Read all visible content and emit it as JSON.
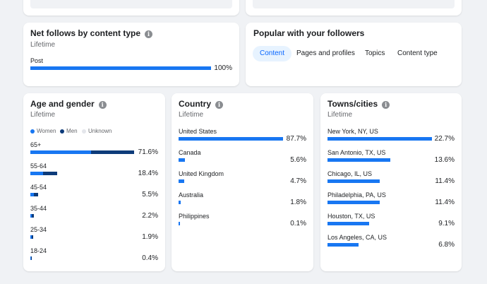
{
  "colors": {
    "women": "#1877f2",
    "men": "#0d3b7a",
    "unknown": "#e4e6eb",
    "bar": "#1877f2"
  },
  "net_follows": {
    "title": "Net follows by content type",
    "subtitle": "Lifetime",
    "rows": [
      {
        "label": "Post",
        "pct": "100%",
        "value": 1.0
      }
    ]
  },
  "popular": {
    "title": "Popular with your followers",
    "tabs": [
      {
        "label": "Content",
        "active": true
      },
      {
        "label": "Pages and profiles",
        "active": false
      },
      {
        "label": "Topics",
        "active": false
      },
      {
        "label": "Content type",
        "active": false
      }
    ]
  },
  "age_gender": {
    "title": "Age and gender",
    "subtitle": "Lifetime",
    "legend": [
      "Women",
      "Men",
      "Unknown"
    ],
    "rows": [
      {
        "label": "65+",
        "pct": "71.6%",
        "women": 0.583,
        "men": 0.417
      },
      {
        "label": "55-64",
        "pct": "18.4%",
        "women": 0.48,
        "men": 0.52
      },
      {
        "label": "45-54",
        "pct": "5.5%",
        "women": 0.45,
        "men": 0.55
      },
      {
        "label": "35-44",
        "pct": "2.2%",
        "women": 0.5,
        "men": 0.5
      },
      {
        "label": "25-34",
        "pct": "1.9%",
        "women": 0.5,
        "men": 0.5
      },
      {
        "label": "18-24",
        "pct": "0.4%",
        "women": 0.5,
        "men": 0.5
      }
    ]
  },
  "country": {
    "title": "Country",
    "subtitle": "Lifetime",
    "rows": [
      {
        "label": "United States",
        "pct": "87.7%",
        "value": 0.877
      },
      {
        "label": "Canada",
        "pct": "5.6%",
        "value": 0.056
      },
      {
        "label": "United Kingdom",
        "pct": "4.7%",
        "value": 0.047
      },
      {
        "label": "Australia",
        "pct": "1.8%",
        "value": 0.018
      },
      {
        "label": "Philippines",
        "pct": "0.1%",
        "value": 0.001
      }
    ]
  },
  "towns": {
    "title": "Towns/cities",
    "subtitle": "Lifetime",
    "rows": [
      {
        "label": "New York, NY, US",
        "pct": "22.7%",
        "value": 0.227
      },
      {
        "label": "San Antonio, TX, US",
        "pct": "13.6%",
        "value": 0.136
      },
      {
        "label": "Chicago, IL, US",
        "pct": "11.4%",
        "value": 0.114
      },
      {
        "label": "Philadelphia, PA, US",
        "pct": "11.4%",
        "value": 0.114
      },
      {
        "label": "Houston, TX, US",
        "pct": "9.1%",
        "value": 0.091
      },
      {
        "label": "Los Angeles, CA, US",
        "pct": "6.8%",
        "value": 0.068
      }
    ]
  }
}
